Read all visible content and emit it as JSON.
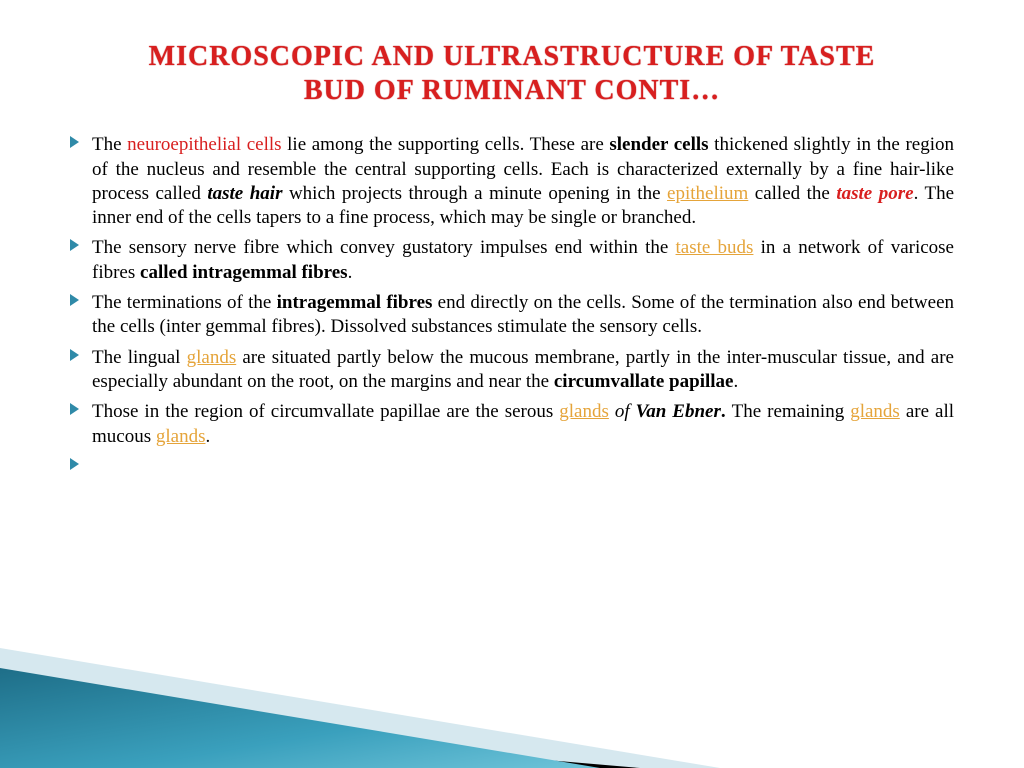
{
  "title_line1": "MICROSCOPIC AND ULTRASTRUCTURE OF TASTE",
  "title_line2": "BUD  OF RUMINANT  CONTI…",
  "colors": {
    "title": "#d81f1f",
    "body_text": "#000000",
    "link": "#e5a43a",
    "bullet_marker": "#2f8aa8",
    "triangle_teal": "#2b8aa6",
    "triangle_light": "#d6e8ef",
    "triangle_black": "#000000",
    "background": "#ffffff"
  },
  "typography": {
    "title_fontsize": 28,
    "body_fontsize": 19,
    "title_weight": "bold",
    "body_family": "Times New Roman"
  },
  "bullets": [
    {
      "segments": [
        {
          "t": "The ",
          "cls": ""
        },
        {
          "t": "neuroepithelial cells",
          "cls": "red-text"
        },
        {
          "t": " lie among the supporting cells. These are ",
          "cls": ""
        },
        {
          "t": "slender cells",
          "cls": "bold"
        },
        {
          "t": " thickened slightly in the region of the nucleus and resemble the central supporting cells. Each is characterized externally by a fine hair-like process called ",
          "cls": ""
        },
        {
          "t": "taste hair",
          "cls": "bold-italic"
        },
        {
          "t": " which projects through a minute opening in the ",
          "cls": ""
        },
        {
          "t": "epithelium",
          "cls": "link"
        },
        {
          "t": " called the ",
          "cls": ""
        },
        {
          "t": "taste pore",
          "cls": "bold-italic red-text"
        },
        {
          "t": ". The inner end of the cells tapers to a fine process, which may be single or branched.",
          "cls": ""
        }
      ]
    },
    {
      "segments": [
        {
          "t": "The sensory nerve fibre which convey gustatory impulses end within the ",
          "cls": ""
        },
        {
          "t": "taste buds",
          "cls": "link"
        },
        {
          "t": " in a network of varicose fibres ",
          "cls": ""
        },
        {
          "t": "called intragemmal fibres",
          "cls": "bold"
        },
        {
          "t": ".",
          "cls": ""
        }
      ]
    },
    {
      "segments": [
        {
          "t": "The terminations of the ",
          "cls": ""
        },
        {
          "t": "intragemmal fibres",
          "cls": "bold"
        },
        {
          "t": " end directly on the cells. Some of the termination also end between the cells (inter gemmal fibres). Dissolved substances stimulate the sensory cells.",
          "cls": ""
        }
      ]
    },
    {
      "segments": [
        {
          "t": "The lingual ",
          "cls": ""
        },
        {
          "t": "glands",
          "cls": "link"
        },
        {
          "t": " are situated partly below the mucous membrane, partly in the inter-muscular tissue, and are especially abundant on the root, on the margins and near the ",
          "cls": ""
        },
        {
          "t": "circumvallate papillae",
          "cls": "bold"
        },
        {
          "t": ".",
          "cls": ""
        }
      ]
    },
    {
      "segments": [
        {
          "t": "Those in the region of circumvallate papillae are the serous ",
          "cls": ""
        },
        {
          "t": "glands",
          "cls": "link"
        },
        {
          "t": " ",
          "cls": "italic"
        },
        {
          "t": "of",
          "cls": "italic"
        },
        {
          "t": " ",
          "cls": ""
        },
        {
          "t": "Van Ebner",
          "cls": "bold-italic"
        },
        {
          "t": ". ",
          "cls": "bold"
        },
        {
          "t": "The remaining ",
          "cls": ""
        },
        {
          "t": "glands",
          "cls": "link"
        },
        {
          "t": " are all mucous ",
          "cls": ""
        },
        {
          "t": "glands",
          "cls": "link"
        },
        {
          "t": ".",
          "cls": ""
        }
      ]
    },
    {
      "segments": []
    }
  ]
}
